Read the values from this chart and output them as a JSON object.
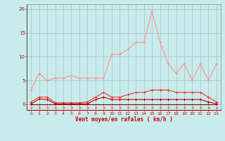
{
  "x": [
    0,
    1,
    2,
    3,
    4,
    5,
    6,
    7,
    8,
    9,
    10,
    11,
    12,
    13,
    14,
    15,
    16,
    17,
    18,
    19,
    20,
    21,
    22,
    23
  ],
  "line_rafales": [
    3.0,
    6.5,
    5.0,
    5.5,
    5.5,
    6.0,
    5.5,
    5.5,
    5.5,
    5.5,
    10.5,
    10.5,
    11.5,
    13.0,
    13.0,
    19.5,
    13.0,
    8.5,
    6.5,
    8.5,
    5.0,
    8.5,
    5.0,
    8.5
  ],
  "line_moyen": [
    0.5,
    1.5,
    1.5,
    0.3,
    0.3,
    0.3,
    0.3,
    0.5,
    1.5,
    2.5,
    1.5,
    1.5,
    2.0,
    2.5,
    2.5,
    3.0,
    3.0,
    3.0,
    2.5,
    2.5,
    2.5,
    2.5,
    1.5,
    0.5
  ],
  "line_flat1": [
    0.1,
    1.1,
    1.0,
    0.1,
    0.1,
    0.1,
    0.1,
    0.1,
    1.0,
    1.5,
    1.0,
    1.0,
    1.0,
    1.0,
    1.0,
    1.0,
    1.0,
    1.0,
    1.0,
    1.0,
    1.0,
    1.0,
    0.5,
    0.1
  ],
  "line_flat2": [
    0.0,
    0.0,
    0.0,
    0.0,
    0.0,
    0.0,
    0.0,
    0.0,
    0.0,
    0.0,
    0.0,
    0.0,
    0.0,
    0.0,
    0.0,
    0.0,
    0.0,
    0.0,
    0.0,
    0.0,
    0.0,
    0.0,
    0.0,
    0.0
  ],
  "bg_color": "#c8ecec",
  "grid_color": "#a0c0c0",
  "color_rafales": "#ff9090",
  "color_moyen": "#ff3030",
  "color_flat1": "#cc0000",
  "color_flat2": "#990000",
  "xlabel": "Vent moyen/en rafales ( km/h )",
  "xlim": [
    -0.5,
    23.5
  ],
  "ylim": [
    -1.2,
    21
  ],
  "yticks": [
    0,
    5,
    10,
    15,
    20
  ],
  "xticks": [
    0,
    1,
    2,
    3,
    4,
    5,
    6,
    7,
    8,
    9,
    10,
    11,
    12,
    13,
    14,
    15,
    16,
    17,
    18,
    19,
    20,
    21,
    22,
    23
  ]
}
